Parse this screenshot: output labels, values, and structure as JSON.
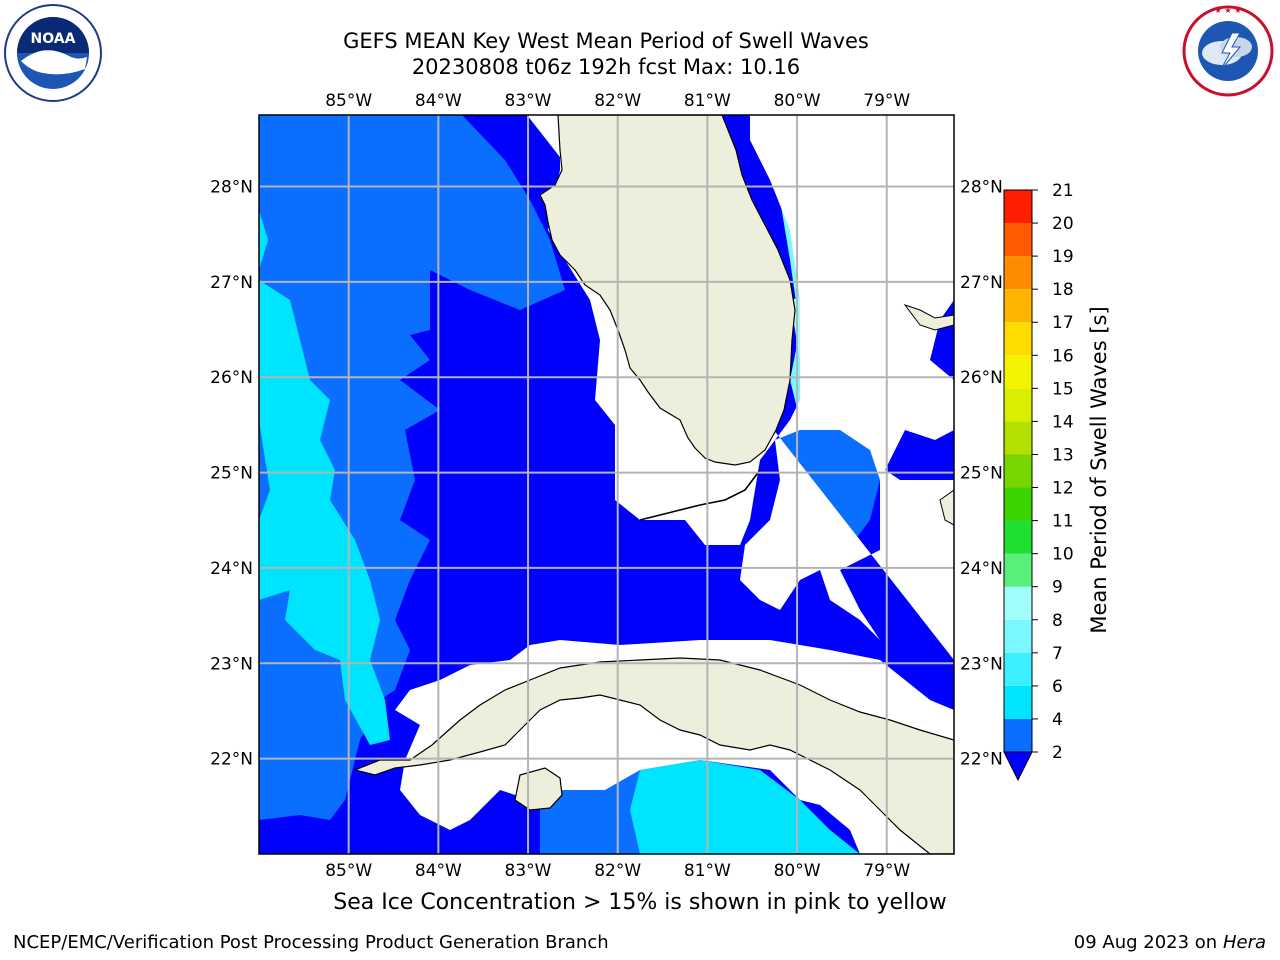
{
  "header": {
    "title_line1": "GEFS MEAN Key West Mean Period of Swell Waves",
    "title_line2": "20230808 t06z 192h fcst   Max: 10.16"
  },
  "logos": {
    "left": {
      "name": "noaa-logo",
      "text": "NOAA",
      "ring_text": "NATIONAL OCEANIC AND ATMOSPHERIC ADMINISTRATION · U.S. DEPARTMENT OF COMMERCE"
    },
    "right": {
      "name": "nws-logo",
      "ring_text": "NATIONAL WEATHER SERVICE"
    }
  },
  "map": {
    "lon_labels": [
      "85°W",
      "84°W",
      "83°W",
      "82°W",
      "81°W",
      "80°W",
      "79°W"
    ],
    "lat_labels": [
      "28°N",
      "27°N",
      "26°N",
      "25°N",
      "24°N",
      "23°N",
      "22°N"
    ],
    "lon_values": [
      -85,
      -84,
      -83,
      -82,
      -81,
      -80,
      -79
    ],
    "lat_values": [
      28,
      27,
      26,
      25,
      24,
      23,
      22
    ],
    "lon_range": [
      -86.0,
      -78.25
    ],
    "lat_range": [
      21.0,
      28.75
    ],
    "grid": true,
    "land_color": "#eeeedd",
    "coast_color": "#000000"
  },
  "colorbar": {
    "title": "Mean Period of Swell Waves [s]",
    "levels": [
      2,
      4,
      6,
      7,
      8,
      9,
      10,
      11,
      12,
      13,
      14,
      15,
      16,
      17,
      18,
      19,
      20,
      21
    ],
    "labels": [
      "2",
      "4",
      "6",
      "7",
      "8",
      "9",
      "10",
      "11",
      "12",
      "13",
      "14",
      "15",
      "16",
      "17",
      "18",
      "19",
      "20",
      "21"
    ],
    "colors": [
      "#0a6eff",
      "#00e5ff",
      "#3cf0ff",
      "#7af7ff",
      "#a0fffa",
      "#5aef7a",
      "#1fdf2f",
      "#3bd400",
      "#78d600",
      "#b4e000",
      "#d9ee00",
      "#f4f400",
      "#ffdc00",
      "#ffb400",
      "#ff8c00",
      "#ff5a00",
      "#ff1e00"
    ],
    "under_color": "#0000ff",
    "extend": "min"
  },
  "notes": {
    "ice": "Sea Ice Concentration > 15% is shown in pink to yellow"
  },
  "footer": {
    "left": "NCEP/EMC/Verification Post Processing Product Generation Branch",
    "right_prefix": "09 Aug 2023 on",
    "right_host": "Hera"
  }
}
